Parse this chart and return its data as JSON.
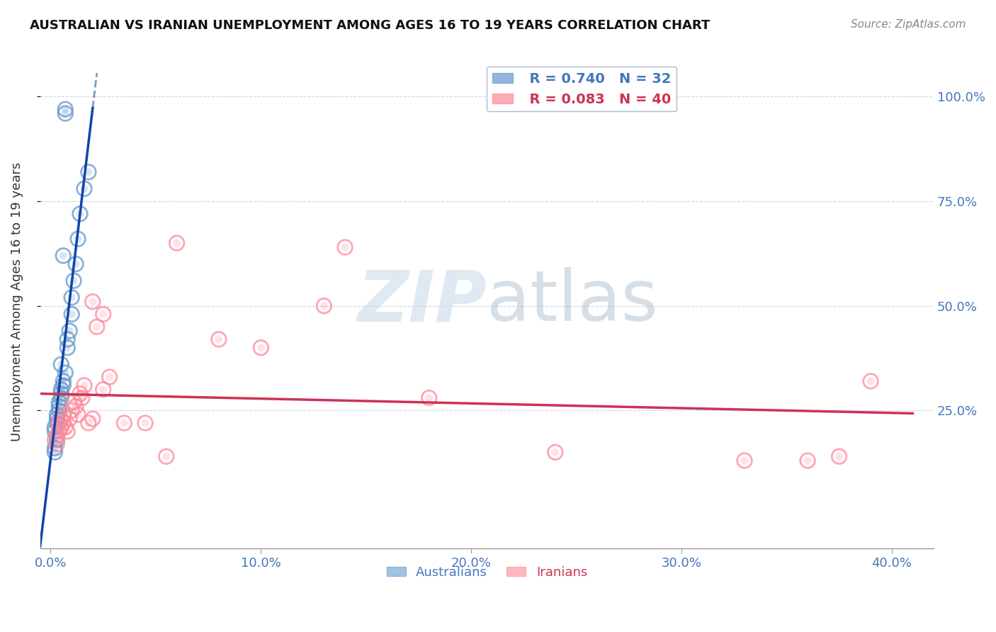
{
  "title": "AUSTRALIAN VS IRANIAN UNEMPLOYMENT AMONG AGES 16 TO 19 YEARS CORRELATION CHART",
  "source": "Source: ZipAtlas.com",
  "ylabel": "Unemployment Among Ages 16 to 19 years",
  "watermark_zip": "ZIP",
  "watermark_atlas": "atlas",
  "legend_blue_r": "R = 0.740",
  "legend_blue_n": "N = 32",
  "legend_pink_r": "R = 0.083",
  "legend_pink_n": "N = 40",
  "blue_color": "#6699CC",
  "pink_color": "#FF8899",
  "blue_line_color": "#1144AA",
  "pink_line_color": "#CC3355",
  "ytick_vals": [
    0.25,
    0.5,
    0.75,
    1.0
  ],
  "ytick_labels": [
    "25.0%",
    "50.0%",
    "75.0%",
    "100.0%"
  ],
  "xtick_vals": [
    0.0,
    0.1,
    0.2,
    0.3,
    0.4
  ],
  "xtick_labels": [
    "0.0%",
    "10.0%",
    "20.0%",
    "30.0%",
    "40.0%"
  ],
  "xlim": [
    -0.005,
    0.42
  ],
  "ylim": [
    -0.08,
    1.1
  ],
  "blue_x": [
    0.002,
    0.002,
    0.003,
    0.003,
    0.003,
    0.004,
    0.004,
    0.004,
    0.005,
    0.005,
    0.005,
    0.006,
    0.006,
    0.007,
    0.008,
    0.009,
    0.01,
    0.01,
    0.011,
    0.012,
    0.013,
    0.014,
    0.016,
    0.018,
    0.002,
    0.002,
    0.003,
    0.005,
    0.006,
    0.008,
    0.007,
    0.007
  ],
  "blue_y": [
    0.2,
    0.21,
    0.22,
    0.23,
    0.24,
    0.25,
    0.26,
    0.27,
    0.28,
    0.29,
    0.3,
    0.31,
    0.32,
    0.34,
    0.4,
    0.44,
    0.48,
    0.52,
    0.56,
    0.6,
    0.66,
    0.72,
    0.78,
    0.82,
    0.15,
    0.16,
    0.18,
    0.36,
    0.62,
    0.42,
    0.96,
    0.97
  ],
  "pink_x": [
    0.002,
    0.003,
    0.003,
    0.004,
    0.004,
    0.005,
    0.005,
    0.006,
    0.006,
    0.007,
    0.008,
    0.009,
    0.01,
    0.011,
    0.012,
    0.013,
    0.014,
    0.015,
    0.016,
    0.018,
    0.02,
    0.022,
    0.025,
    0.028,
    0.035,
    0.045,
    0.055,
    0.08,
    0.1,
    0.13,
    0.18,
    0.24,
    0.02,
    0.025,
    0.14,
    0.33,
    0.36,
    0.375,
    0.39,
    0.06
  ],
  "pink_y": [
    0.18,
    0.17,
    0.19,
    0.2,
    0.22,
    0.21,
    0.23,
    0.24,
    0.22,
    0.21,
    0.2,
    0.23,
    0.25,
    0.27,
    0.26,
    0.24,
    0.29,
    0.28,
    0.31,
    0.22,
    0.23,
    0.45,
    0.3,
    0.33,
    0.22,
    0.22,
    0.14,
    0.42,
    0.4,
    0.5,
    0.28,
    0.15,
    0.51,
    0.48,
    0.64,
    0.13,
    0.13,
    0.14,
    0.32,
    0.65
  ]
}
